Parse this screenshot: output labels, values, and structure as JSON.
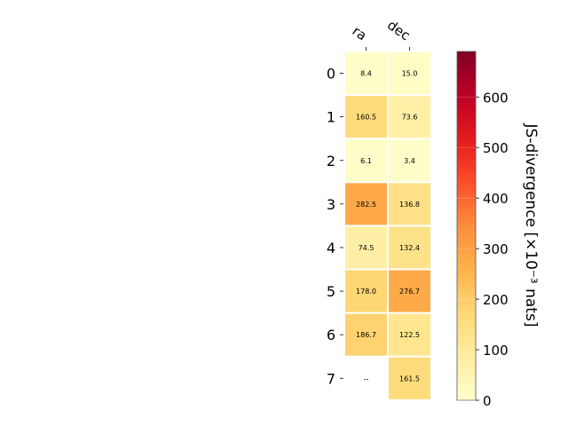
{
  "chart_data": {
    "type": "heatmap",
    "columns": [
      "ra",
      "dec"
    ],
    "rows": [
      "0",
      "1",
      "2",
      "3",
      "4",
      "5",
      "6",
      "7"
    ],
    "values": [
      [
        8.4,
        15.0
      ],
      [
        160.5,
        73.6
      ],
      [
        6.1,
        3.4
      ],
      [
        282.5,
        136.8
      ],
      [
        74.5,
        132.4
      ],
      [
        178.0,
        276.7
      ],
      [
        186.7,
        122.5
      ],
      [
        null,
        161.5
      ]
    ],
    "cell_labels": [
      [
        "8.4",
        "15.0"
      ],
      [
        "160.5",
        "73.6"
      ],
      [
        "6.1",
        "3.4"
      ],
      [
        "282.5",
        "136.8"
      ],
      [
        "74.5",
        "132.4"
      ],
      [
        "178.0",
        "276.7"
      ],
      [
        "186.7",
        "122.5"
      ],
      [
        "--",
        "161.5"
      ]
    ],
    "colorbar": {
      "label": "JS-divergence [×10⁻³ nats]",
      "ticks": [
        "0",
        "100",
        "200",
        "300",
        "400",
        "500",
        "600"
      ],
      "tick_values": [
        0,
        100,
        200,
        300,
        400,
        500,
        600
      ],
      "vmin": 0,
      "vmax": 690,
      "colormap": "YlOrRd"
    }
  }
}
